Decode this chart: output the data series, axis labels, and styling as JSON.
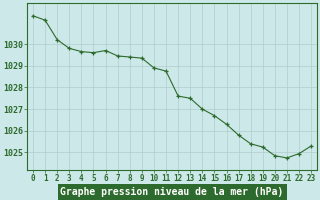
{
  "x": [
    0,
    1,
    2,
    3,
    4,
    5,
    6,
    7,
    8,
    9,
    10,
    11,
    12,
    13,
    14,
    15,
    16,
    17,
    18,
    19,
    20,
    21,
    22,
    23
  ],
  "y": [
    1031.3,
    1031.1,
    1030.2,
    1029.8,
    1029.65,
    1029.6,
    1029.7,
    1029.45,
    1029.4,
    1029.35,
    1028.9,
    1028.75,
    1027.6,
    1027.5,
    1027.0,
    1026.7,
    1026.3,
    1025.8,
    1025.4,
    1025.25,
    1024.85,
    1024.75,
    1024.95,
    1025.3
  ],
  "line_color": "#2d6a2d",
  "marker": "+",
  "bg_color": "#cce8e8",
  "ylabel_ticks": [
    1025,
    1026,
    1027,
    1028,
    1029,
    1030
  ],
  "ylim": [
    1024.2,
    1031.9
  ],
  "xlim": [
    -0.5,
    23.5
  ],
  "xlabel": "Graphe pression niveau de la mer (hPa)",
  "xlabel_bg": "#2d6a2d",
  "axis_color": "#2d6a2d",
  "tick_label_color": "#2d6a2d",
  "grid_color": "#b0cccc",
  "tick_fontsize": 5.5,
  "ylabel_fontsize": 6.0,
  "xlabel_fontsize": 7.0
}
